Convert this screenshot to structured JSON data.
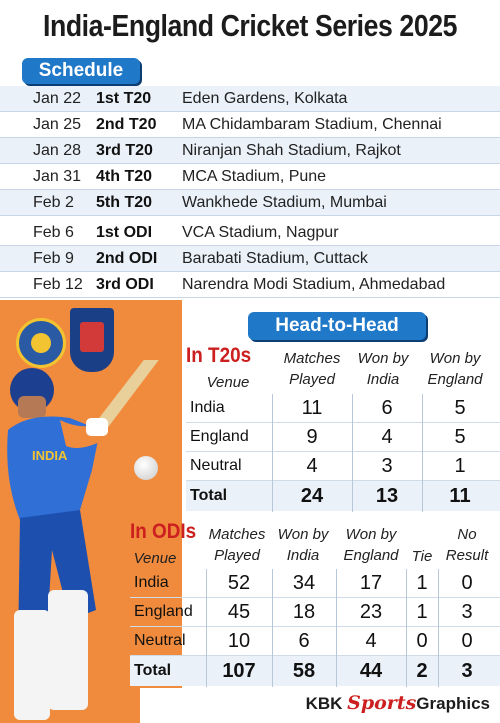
{
  "title": "India-England Cricket Series 2025",
  "schedule": {
    "label": "Schedule",
    "rows": [
      {
        "date": "Jan 22",
        "match": "1st T20",
        "venue": "Eden Gardens, Kolkata"
      },
      {
        "date": "Jan 25",
        "match": "2nd T20",
        "venue": "MA Chidambaram Stadium, Chennai"
      },
      {
        "date": "Jan 28",
        "match": "3rd T20",
        "venue": "Niranjan Shah Stadium, Rajkot"
      },
      {
        "date": "Jan 31",
        "match": "4th T20",
        "venue": "MCA Stadium, Pune"
      },
      {
        "date": "Feb 2",
        "match": "5th T20",
        "venue": "Wankhede Stadium, Mumbai"
      },
      {
        "date": "Feb 6",
        "match": "1st ODI",
        "venue": "VCA Stadium, Nagpur"
      },
      {
        "date": "Feb 9",
        "match": "2nd ODI",
        "venue": "Barabati Stadium, Cuttack"
      },
      {
        "date": "Feb 12",
        "match": "3rd ODI",
        "venue": "Narendra Modi Stadium, Ahmedabad"
      }
    ]
  },
  "h2h_label": "Head-to-Head",
  "t20": {
    "label": "In T20s",
    "headers": {
      "venue": "Venue",
      "played_1": "Matches",
      "played_2": "Played",
      "india_1": "Won by",
      "india_2": "India",
      "england_1": "Won by",
      "england_2": "England"
    },
    "rows": [
      {
        "venue": "India",
        "played": "11",
        "india": "6",
        "england": "5"
      },
      {
        "venue": "England",
        "played": "9",
        "india": "4",
        "england": "5"
      },
      {
        "venue": "Neutral",
        "played": "4",
        "india": "3",
        "england": "1"
      }
    ],
    "total": {
      "venue": "Total",
      "played": "24",
      "india": "13",
      "england": "11"
    }
  },
  "odi": {
    "label": "In ODIs",
    "headers": {
      "venue": "Venue",
      "played_1": "Matches",
      "played_2": "Played",
      "india_1": "Won by",
      "india_2": "India",
      "england_1": "Won by",
      "england_2": "England",
      "tie": "Tie",
      "nr_1": "No",
      "nr_2": "Result"
    },
    "rows": [
      {
        "venue": "India",
        "played": "52",
        "india": "34",
        "england": "17",
        "tie": "1",
        "nr": "0"
      },
      {
        "venue": "England",
        "played": "45",
        "india": "18",
        "england": "23",
        "tie": "1",
        "nr": "3"
      },
      {
        "venue": "Neutral",
        "played": "10",
        "india": "6",
        "england": "4",
        "tie": "0",
        "nr": "0"
      }
    ],
    "total": {
      "venue": "Total",
      "played": "107",
      "india": "58",
      "england": "44",
      "tie": "2",
      "nr": "3"
    }
  },
  "credit": {
    "left": "KBK ",
    "mid": "Sports",
    "right": "Graphics"
  },
  "jersey_text": "INDIA",
  "colors": {
    "accent_blue": "#1f78c8",
    "accent_orange": "#f08a3c",
    "accent_red": "#cc1f1f"
  }
}
